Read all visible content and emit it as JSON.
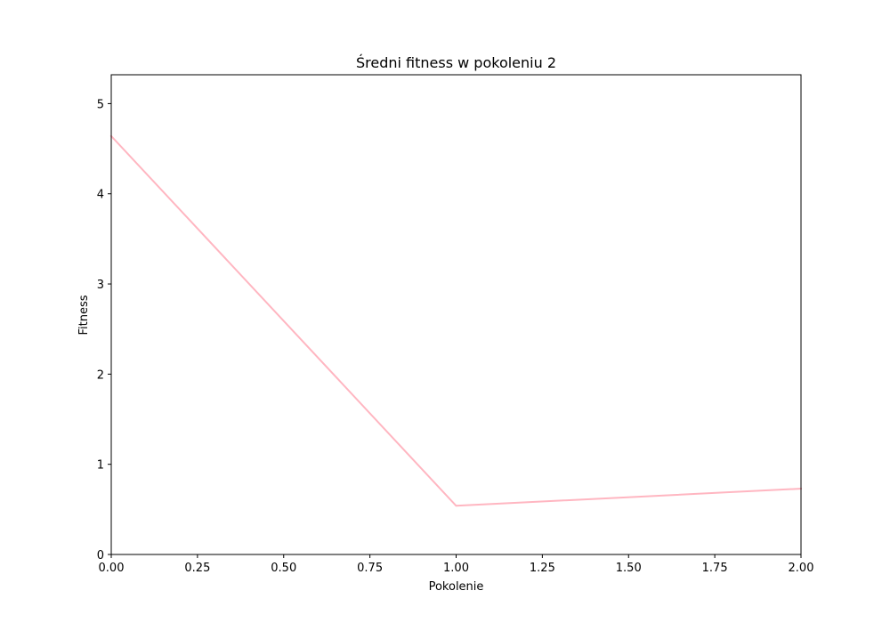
{
  "chart_data": {
    "type": "line",
    "title": "Średni fitness w pokoleniu 2",
    "xlabel": "Pokolenie",
    "ylabel": "Fitness",
    "xlim": [
      0,
      2
    ],
    "ylim": [
      0,
      5.32
    ],
    "x_ticks": [
      0,
      0.25,
      0.5,
      0.75,
      1.0,
      1.25,
      1.5,
      1.75,
      2.0
    ],
    "x_tick_labels": [
      "0.00",
      "0.25",
      "0.50",
      "0.75",
      "1.00",
      "1.25",
      "1.50",
      "1.75",
      "2.00"
    ],
    "y_ticks": [
      0,
      1,
      2,
      3,
      4,
      5
    ],
    "y_tick_labels": [
      "0",
      "1",
      "2",
      "3",
      "4",
      "5"
    ],
    "grid": false,
    "series": [
      {
        "color": "#ffb6c1",
        "x": [
          0,
          1,
          2
        ],
        "y": [
          4.64,
          0.54,
          0.73
        ]
      }
    ]
  }
}
